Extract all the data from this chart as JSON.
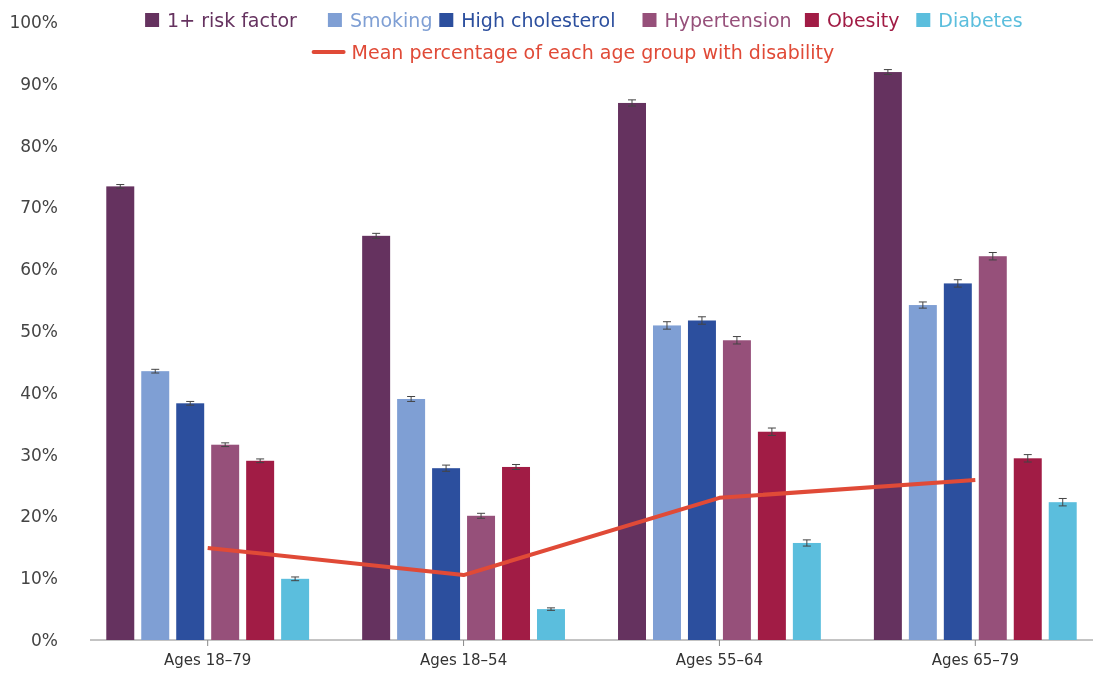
{
  "chart_data": {
    "type": "bar",
    "categories": [
      "Ages 18–79",
      "Ages 18–54",
      "Ages 55–64",
      "Ages 65–79"
    ],
    "series": [
      {
        "name": "1+ risk factor",
        "color": "#65325f",
        "values": [
          73.4,
          65.4,
          86.9,
          91.9
        ],
        "errors": [
          0.3,
          0.4,
          0.5,
          0.4
        ]
      },
      {
        "name": "Smoking",
        "color": "#7f9fd4",
        "values": [
          43.5,
          39.0,
          50.9,
          54.2
        ],
        "errors": [
          0.3,
          0.4,
          0.6,
          0.5
        ]
      },
      {
        "name": "High cholesterol",
        "color": "#2c4f9e",
        "values": [
          38.3,
          27.8,
          51.7,
          57.7
        ],
        "errors": [
          0.3,
          0.5,
          0.6,
          0.6
        ]
      },
      {
        "name": "Hypertension",
        "color": "#96507a",
        "values": [
          31.6,
          20.1,
          48.5,
          62.1
        ],
        "errors": [
          0.3,
          0.4,
          0.6,
          0.6
        ]
      },
      {
        "name": "Obesity",
        "color": "#a11c45",
        "values": [
          29.0,
          28.0,
          33.7,
          29.4
        ],
        "errors": [
          0.3,
          0.4,
          0.6,
          0.6
        ]
      },
      {
        "name": "Diabetes",
        "color": "#5bbedd",
        "values": [
          9.9,
          5.0,
          15.7,
          22.3
        ],
        "errors": [
          0.3,
          0.2,
          0.5,
          0.6
        ]
      },
      {
        "name": "Mean percentage of each age group with disability",
        "type": "line",
        "color": "#e04a37",
        "values": [
          14.9,
          10.5,
          23.0,
          25.9
        ]
      }
    ],
    "ylim": [
      0,
      100
    ],
    "yticks": [
      {
        "value": 0,
        "label": "0%"
      },
      {
        "value": 10,
        "label": "10%"
      },
      {
        "value": 20,
        "label": "20%"
      },
      {
        "value": 30,
        "label": "30%"
      },
      {
        "value": 40,
        "label": "40%"
      },
      {
        "value": 50,
        "label": "50%"
      },
      {
        "value": 60,
        "label": "60%"
      },
      {
        "value": 70,
        "label": "70%"
      },
      {
        "value": 80,
        "label": "80%"
      },
      {
        "value": 90,
        "label": "90%"
      },
      {
        "value": 100,
        "label": "100%"
      }
    ],
    "grid": false,
    "legend": "top"
  }
}
